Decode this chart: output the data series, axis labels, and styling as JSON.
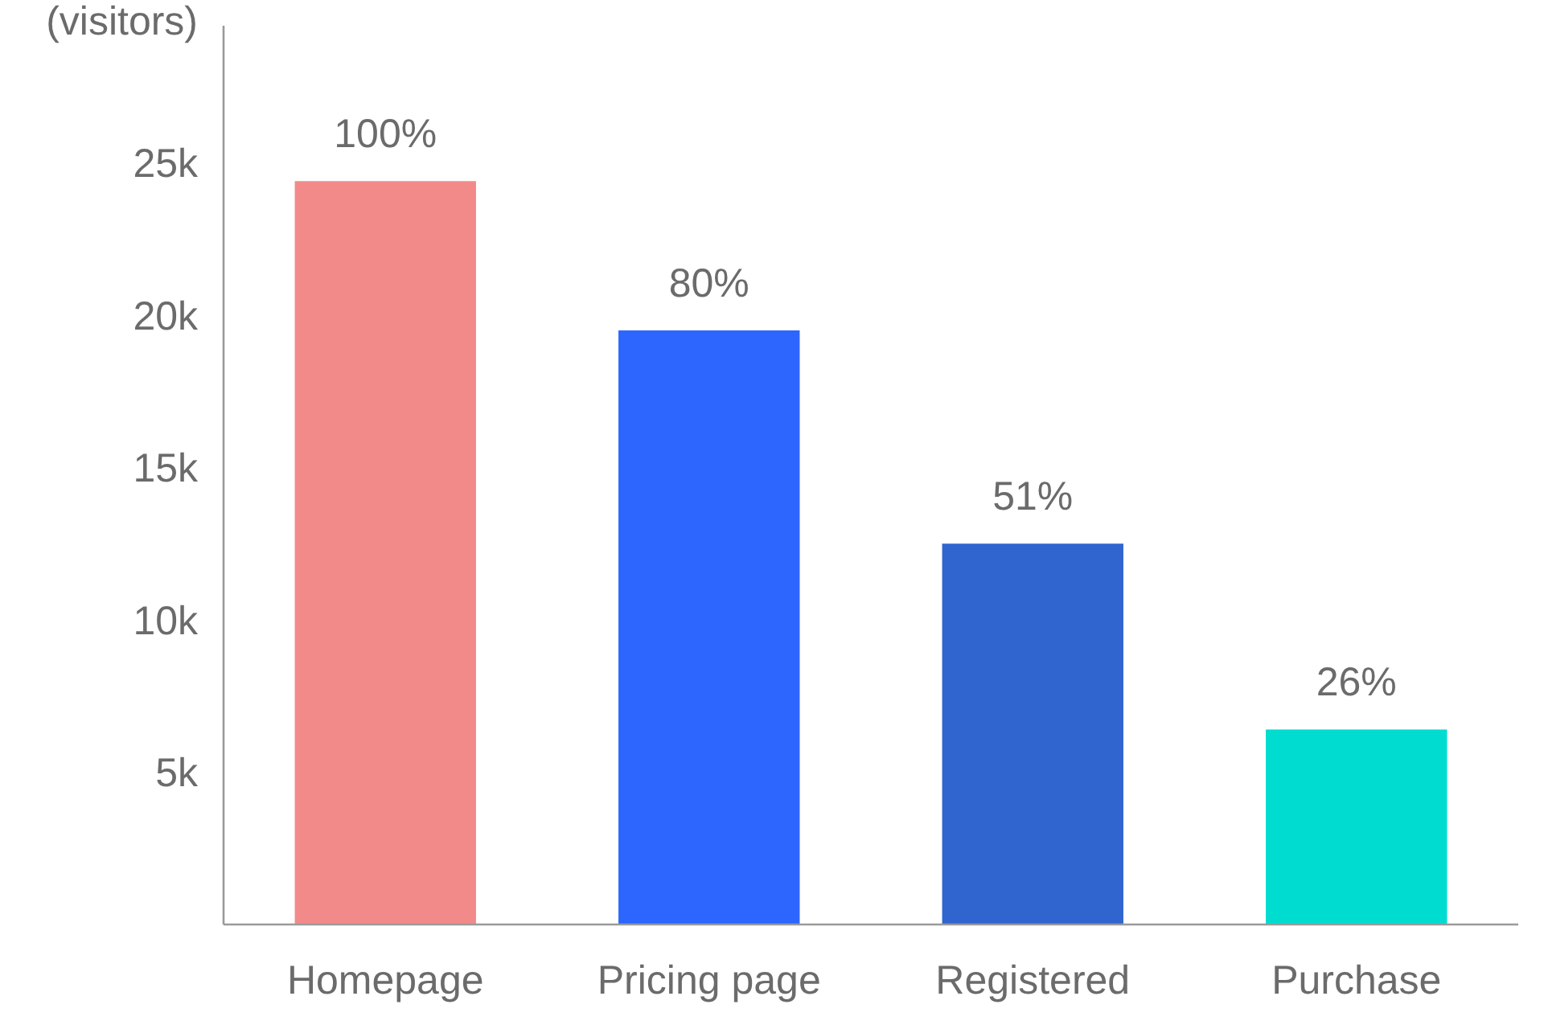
{
  "chart_data": {
    "type": "bar",
    "ylabel": "(visitors)",
    "categories": [
      "Homepage",
      "Pricing page",
      "Registered",
      "Purchase"
    ],
    "values": [
      24400,
      19500,
      12500,
      6400
    ],
    "colors": [
      "#f38a8a",
      "#2d66fe",
      "#3064cf",
      "#00ddd0"
    ],
    "annotations": [
      {
        "text": "100%",
        "x": "Homepage",
        "y": 24400
      },
      {
        "text": "80%",
        "x": "Pricing page",
        "y": 19500
      },
      {
        "text": "51%",
        "x": "Registered",
        "y": 12500
      },
      {
        "text": "26%",
        "x": "Purchase",
        "y": 6400
      }
    ],
    "ylim": [
      0,
      29500
    ],
    "yticks": [
      {
        "value": 5000,
        "label": "5k"
      },
      {
        "value": 10000,
        "label": "10k"
      },
      {
        "value": 15000,
        "label": "15k"
      },
      {
        "value": 20000,
        "label": "20k"
      },
      {
        "value": 25000,
        "label": "25k"
      }
    ]
  }
}
